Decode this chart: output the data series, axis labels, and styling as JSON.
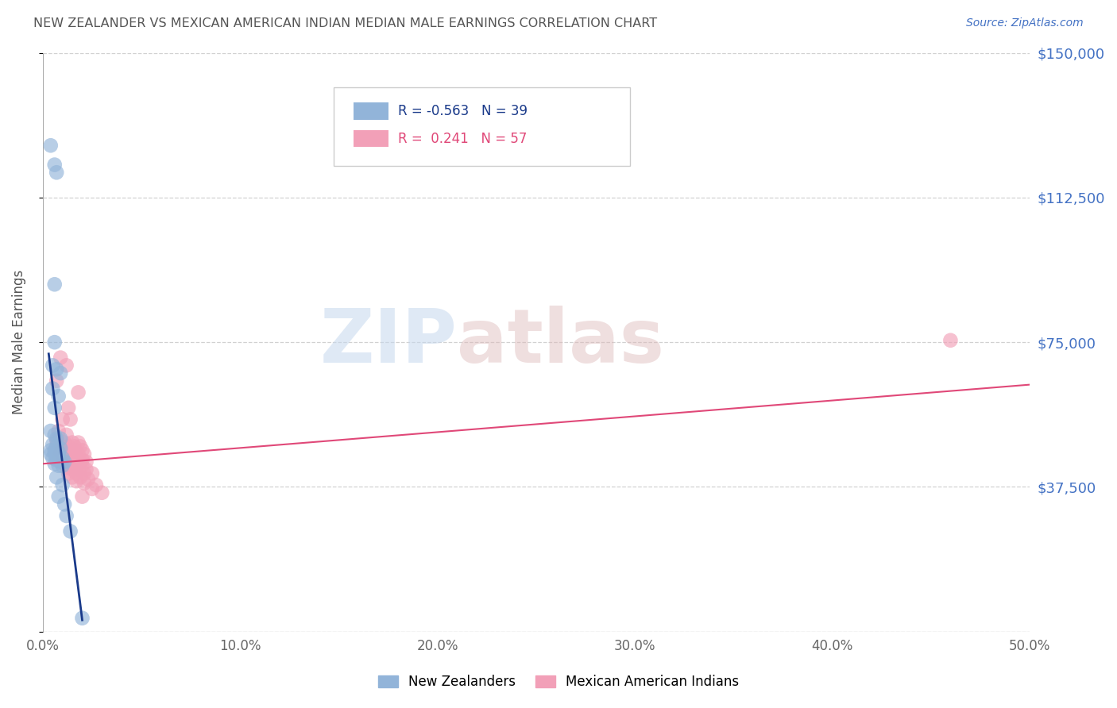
{
  "title": "NEW ZEALANDER VS MEXICAN AMERICAN INDIAN MEDIAN MALE EARNINGS CORRELATION CHART",
  "source": "Source: ZipAtlas.com",
  "ylabel": "Median Male Earnings",
  "watermark_zip": "ZIP",
  "watermark_atlas": "atlas",
  "legend_blue_r": "-0.563",
  "legend_blue_n": "39",
  "legend_pink_r": "0.241",
  "legend_pink_n": "57",
  "legend_label_blue": "New Zealanders",
  "legend_label_pink": "Mexican American Indians",
  "xlim": [
    0.0,
    0.5
  ],
  "ylim": [
    0,
    150000
  ],
  "yticks": [
    0,
    37500,
    75000,
    112500,
    150000
  ],
  "ytick_labels": [
    "",
    "$37,500",
    "$75,000",
    "$112,500",
    "$150,000"
  ],
  "xtick_labels": [
    "0.0%",
    "10.0%",
    "20.0%",
    "30.0%",
    "40.0%",
    "50.0%"
  ],
  "xticks": [
    0.0,
    0.1,
    0.2,
    0.3,
    0.4,
    0.5
  ],
  "background_color": "#ffffff",
  "grid_color": "#cccccc",
  "title_color": "#555555",
  "ytick_color": "#4472c4",
  "xtick_color": "#666666",
  "blue_color": "#92b4d9",
  "pink_color": "#f2a0b8",
  "blue_line_color": "#1a3a8a",
  "pink_line_color": "#e04878",
  "blue_scatter": [
    [
      0.004,
      126000
    ],
    [
      0.006,
      121000
    ],
    [
      0.007,
      119000
    ],
    [
      0.006,
      90000
    ],
    [
      0.006,
      75000
    ],
    [
      0.005,
      69000
    ],
    [
      0.007,
      68000
    ],
    [
      0.009,
      67000
    ],
    [
      0.005,
      63000
    ],
    [
      0.008,
      61000
    ],
    [
      0.006,
      58000
    ],
    [
      0.004,
      52000
    ],
    [
      0.006,
      51000
    ],
    [
      0.007,
      50000
    ],
    [
      0.009,
      50000
    ],
    [
      0.005,
      48500
    ],
    [
      0.007,
      48000
    ],
    [
      0.009,
      47500
    ],
    [
      0.004,
      47000
    ],
    [
      0.006,
      47000
    ],
    [
      0.008,
      46500
    ],
    [
      0.004,
      46000
    ],
    [
      0.006,
      46000
    ],
    [
      0.008,
      45500
    ],
    [
      0.01,
      45000
    ],
    [
      0.005,
      45000
    ],
    [
      0.007,
      44500
    ],
    [
      0.009,
      44000
    ],
    [
      0.011,
      44000
    ],
    [
      0.006,
      43500
    ],
    [
      0.008,
      43000
    ],
    [
      0.01,
      43000
    ],
    [
      0.007,
      40000
    ],
    [
      0.01,
      38000
    ],
    [
      0.008,
      35000
    ],
    [
      0.011,
      33000
    ],
    [
      0.012,
      30000
    ],
    [
      0.014,
      26000
    ],
    [
      0.02,
      3500
    ]
  ],
  "pink_scatter": [
    [
      0.009,
      71000
    ],
    [
      0.012,
      69000
    ],
    [
      0.007,
      65000
    ],
    [
      0.018,
      62000
    ],
    [
      0.013,
      58000
    ],
    [
      0.01,
      55000
    ],
    [
      0.014,
      55000
    ],
    [
      0.008,
      52000
    ],
    [
      0.012,
      51000
    ],
    [
      0.007,
      49500
    ],
    [
      0.011,
      49000
    ],
    [
      0.015,
      49000
    ],
    [
      0.018,
      49000
    ],
    [
      0.013,
      48000
    ],
    [
      0.016,
      48000
    ],
    [
      0.019,
      48000
    ],
    [
      0.01,
      47500
    ],
    [
      0.013,
      47000
    ],
    [
      0.016,
      47000
    ],
    [
      0.02,
      47000
    ],
    [
      0.009,
      46500
    ],
    [
      0.012,
      46000
    ],
    [
      0.015,
      46000
    ],
    [
      0.018,
      46000
    ],
    [
      0.021,
      46000
    ],
    [
      0.008,
      45500
    ],
    [
      0.011,
      45000
    ],
    [
      0.014,
      45000
    ],
    [
      0.017,
      45000
    ],
    [
      0.02,
      44500
    ],
    [
      0.01,
      44000
    ],
    [
      0.013,
      44000
    ],
    [
      0.016,
      44000
    ],
    [
      0.019,
      44000
    ],
    [
      0.022,
      44000
    ],
    [
      0.011,
      43500
    ],
    [
      0.014,
      43000
    ],
    [
      0.017,
      43000
    ],
    [
      0.02,
      43000
    ],
    [
      0.012,
      42500
    ],
    [
      0.015,
      42000
    ],
    [
      0.018,
      42000
    ],
    [
      0.022,
      42000
    ],
    [
      0.013,
      41000
    ],
    [
      0.017,
      41000
    ],
    [
      0.021,
      41000
    ],
    [
      0.025,
      41000
    ],
    [
      0.015,
      40000
    ],
    [
      0.019,
      40000
    ],
    [
      0.023,
      39500
    ],
    [
      0.017,
      39000
    ],
    [
      0.021,
      38500
    ],
    [
      0.027,
      38000
    ],
    [
      0.025,
      37000
    ],
    [
      0.03,
      36000
    ],
    [
      0.02,
      35000
    ],
    [
      0.46,
      75500
    ]
  ],
  "blue_line_x": [
    0.003,
    0.02
  ],
  "blue_line_y": [
    72000,
    3000
  ],
  "pink_line_x": [
    0.0,
    0.5
  ],
  "pink_line_y": [
    43500,
    64000
  ]
}
